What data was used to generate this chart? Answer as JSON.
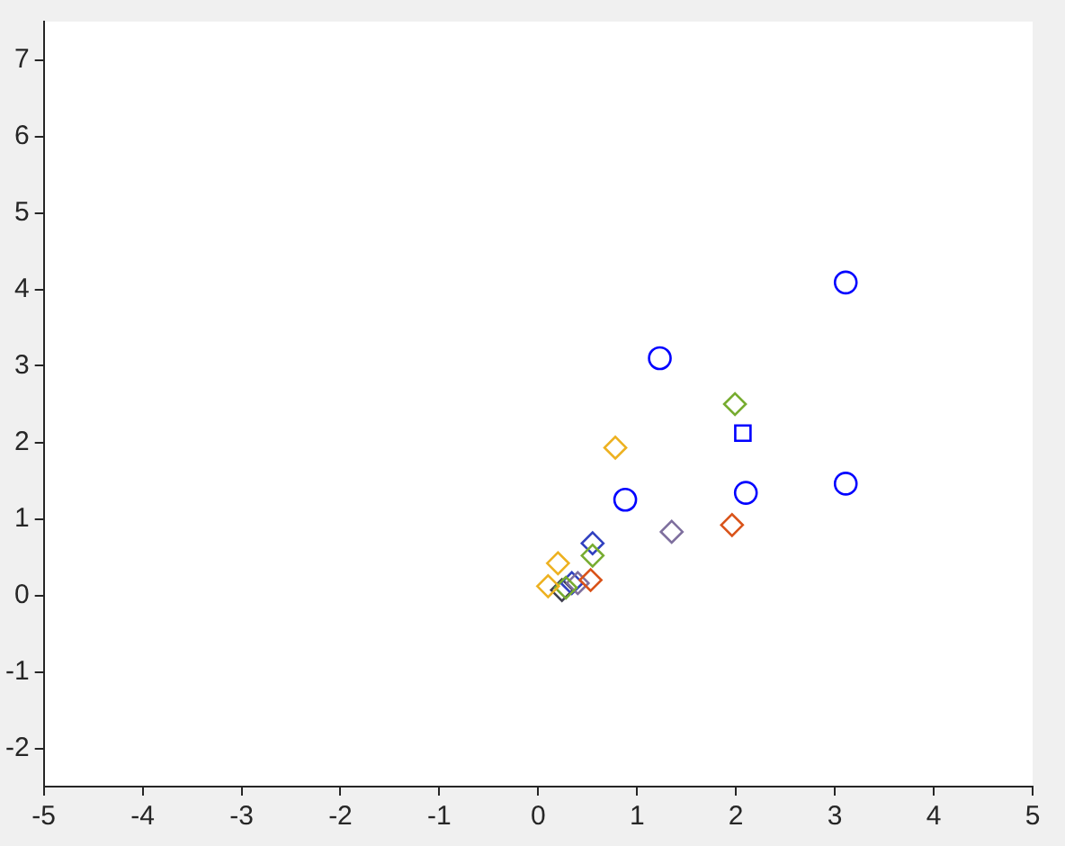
{
  "chart_data": {
    "type": "scatter",
    "xlim": [
      -5,
      5
    ],
    "ylim": [
      -2.5,
      7.5
    ],
    "xticks": [
      -5,
      -4,
      -3,
      -2,
      -1,
      0,
      1,
      2,
      3,
      4,
      5
    ],
    "yticks": [
      -2,
      -1,
      0,
      1,
      2,
      3,
      4,
      5,
      6,
      7
    ],
    "grid": false,
    "legend": false,
    "series": [
      {
        "color": "#0000ff",
        "marker": "circle",
        "x": [
          3.11,
          1.23,
          0.88,
          2.1,
          3.11
        ],
        "values": [
          4.09,
          3.1,
          1.25,
          1.34,
          1.46
        ]
      },
      {
        "color": "#0000ff",
        "marker": "square",
        "x": [
          2.07
        ],
        "values": [
          2.12
        ]
      },
      {
        "color": "#edb120",
        "marker": "diamond",
        "x": [
          0.78,
          0.2,
          0.1
        ],
        "values": [
          1.93,
          0.42,
          0.12
        ]
      },
      {
        "color": "#d95319",
        "marker": "diamond",
        "x": [
          1.96,
          0.53
        ],
        "values": [
          0.92,
          0.2
        ]
      },
      {
        "color": "#77ac30",
        "marker": "diamond",
        "x": [
          1.99,
          0.55,
          0.28
        ],
        "values": [
          2.5,
          0.52,
          0.1
        ]
      },
      {
        "color": "#7e6f9e",
        "marker": "diamond",
        "x": [
          1.35,
          0.4
        ],
        "values": [
          0.83,
          0.16
        ]
      },
      {
        "color": "#3040c0",
        "marker": "diamond",
        "x": [
          0.55,
          0.34
        ],
        "values": [
          0.68,
          0.16
        ]
      },
      {
        "color": "#404050",
        "marker": "diamond",
        "x": [
          0.24
        ],
        "values": [
          0.07
        ]
      }
    ]
  }
}
